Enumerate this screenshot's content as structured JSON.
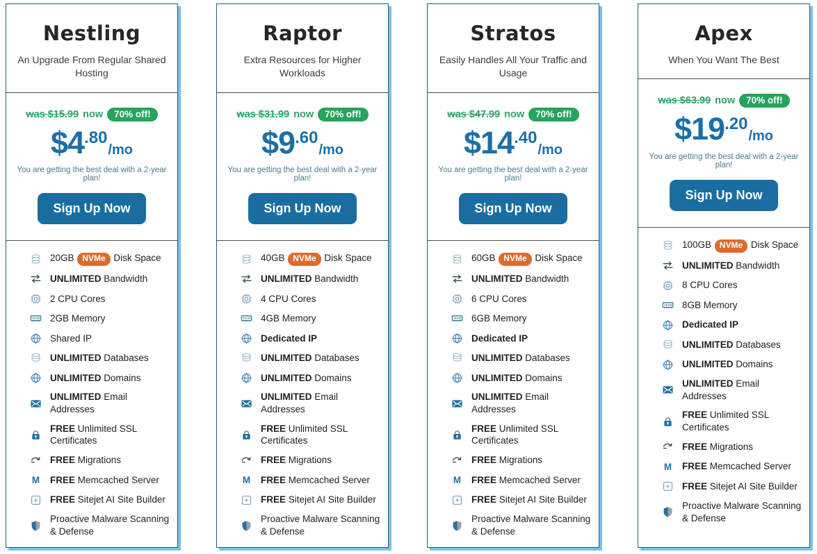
{
  "page": {
    "background": "#ffffff"
  },
  "colors": {
    "accent_blue": "#1c6fa6",
    "button_blue": "#1a6da1",
    "green": "#26a35c",
    "nvme_orange": "#dd6b2f",
    "card_border": "#1d5d6e",
    "card_shadow": "#7cc0e6"
  },
  "shared": {
    "now_label": "now",
    "discount_badge": "70% off!",
    "price_period": "/mo",
    "deal_text": "You are getting the best deal with a 2-year plan!",
    "cta_label": "Sign Up Now",
    "memcached_glyph": "M"
  },
  "plans": [
    {
      "name": "Nestling",
      "subtitle": "An Upgrade From Regular Shared Hosting",
      "was_text": "was $15.99",
      "price_main": "$4",
      "price_cents": ".80",
      "features": [
        {
          "icon": "disk-stack-icon",
          "segments": [
            {
              "t": "20GB"
            },
            {
              "t": "NVMe",
              "badge": true
            },
            {
              "t": "Disk Space"
            }
          ]
        },
        {
          "icon": "bandwidth-icon",
          "segments": [
            {
              "t": "UNLIMITED",
              "b": true
            },
            {
              "t": "Bandwidth"
            }
          ]
        },
        {
          "icon": "cpu-icon",
          "segments": [
            {
              "t": "2 CPU Cores"
            }
          ]
        },
        {
          "icon": "memory-icon",
          "segments": [
            {
              "t": "2GB Memory"
            }
          ]
        },
        {
          "icon": "globe-icon",
          "segments": [
            {
              "t": "Shared IP"
            }
          ]
        },
        {
          "icon": "database-icon",
          "segments": [
            {
              "t": "UNLIMITED",
              "b": true
            },
            {
              "t": "Databases"
            }
          ]
        },
        {
          "icon": "globe-icon",
          "segments": [
            {
              "t": "UNLIMITED",
              "b": true
            },
            {
              "t": "Domains"
            }
          ]
        },
        {
          "icon": "email-icon",
          "segments": [
            {
              "t": "UNLIMITED",
              "b": true
            },
            {
              "t": "Email Addresses"
            }
          ]
        },
        {
          "icon": "lock-icon",
          "segments": [
            {
              "t": "FREE",
              "b": true
            },
            {
              "t": "Unlimited SSL Certificates"
            }
          ]
        },
        {
          "icon": "migration-icon",
          "segments": [
            {
              "t": "FREE",
              "b": true
            },
            {
              "t": "Migrations"
            }
          ]
        },
        {
          "icon": "memcached-icon",
          "segments": [
            {
              "t": "FREE",
              "b": true
            },
            {
              "t": "Memcached Server"
            }
          ]
        },
        {
          "icon": "sitejet-icon",
          "segments": [
            {
              "t": "FREE",
              "b": true
            },
            {
              "t": "Sitejet AI Site Builder"
            }
          ]
        },
        {
          "icon": "shield-icon",
          "segments": [
            {
              "t": "Proactive Malware Scanning & Defense"
            }
          ]
        }
      ]
    },
    {
      "name": "Raptor",
      "subtitle": "Extra Resources for Higher Workloads",
      "was_text": "was $31.99",
      "price_main": "$9",
      "price_cents": ".60",
      "features": [
        {
          "icon": "disk-stack-icon",
          "segments": [
            {
              "t": "40GB"
            },
            {
              "t": "NVMe",
              "badge": true
            },
            {
              "t": "Disk Space"
            }
          ]
        },
        {
          "icon": "bandwidth-icon",
          "segments": [
            {
              "t": "UNLIMITED",
              "b": true
            },
            {
              "t": "Bandwidth"
            }
          ]
        },
        {
          "icon": "cpu-icon",
          "segments": [
            {
              "t": "4 CPU Cores"
            }
          ]
        },
        {
          "icon": "memory-icon",
          "segments": [
            {
              "t": "4GB Memory"
            }
          ]
        },
        {
          "icon": "globe-icon",
          "segments": [
            {
              "t": "Dedicated IP",
              "b": true
            }
          ]
        },
        {
          "icon": "database-icon",
          "segments": [
            {
              "t": "UNLIMITED",
              "b": true
            },
            {
              "t": "Databases"
            }
          ]
        },
        {
          "icon": "globe-icon",
          "segments": [
            {
              "t": "UNLIMITED",
              "b": true
            },
            {
              "t": "Domains"
            }
          ]
        },
        {
          "icon": "email-icon",
          "segments": [
            {
              "t": "UNLIMITED",
              "b": true
            },
            {
              "t": "Email Addresses"
            }
          ]
        },
        {
          "icon": "lock-icon",
          "segments": [
            {
              "t": "FREE",
              "b": true
            },
            {
              "t": "Unlimited SSL Certificates"
            }
          ]
        },
        {
          "icon": "migration-icon",
          "segments": [
            {
              "t": "FREE",
              "b": true
            },
            {
              "t": "Migrations"
            }
          ]
        },
        {
          "icon": "memcached-icon",
          "segments": [
            {
              "t": "FREE",
              "b": true
            },
            {
              "t": "Memcached Server"
            }
          ]
        },
        {
          "icon": "sitejet-icon",
          "segments": [
            {
              "t": "FREE",
              "b": true
            },
            {
              "t": "Sitejet AI Site Builder"
            }
          ]
        },
        {
          "icon": "shield-icon",
          "segments": [
            {
              "t": "Proactive Malware Scanning & Defense"
            }
          ]
        }
      ]
    },
    {
      "name": "Stratos",
      "subtitle": "Easily Handles All Your Traffic and Usage",
      "was_text": "was $47.99",
      "price_main": "$14",
      "price_cents": ".40",
      "features": [
        {
          "icon": "disk-stack-icon",
          "segments": [
            {
              "t": "60GB"
            },
            {
              "t": "NVMe",
              "badge": true
            },
            {
              "t": "Disk Space"
            }
          ]
        },
        {
          "icon": "bandwidth-icon",
          "segments": [
            {
              "t": "UNLIMITED",
              "b": true
            },
            {
              "t": "Bandwidth"
            }
          ]
        },
        {
          "icon": "cpu-icon",
          "segments": [
            {
              "t": "6 CPU Cores"
            }
          ]
        },
        {
          "icon": "memory-icon",
          "segments": [
            {
              "t": "6GB Memory"
            }
          ]
        },
        {
          "icon": "globe-icon",
          "segments": [
            {
              "t": "Dedicated IP",
              "b": true
            }
          ]
        },
        {
          "icon": "database-icon",
          "segments": [
            {
              "t": "UNLIMITED",
              "b": true
            },
            {
              "t": "Databases"
            }
          ]
        },
        {
          "icon": "globe-icon",
          "segments": [
            {
              "t": "UNLIMITED",
              "b": true
            },
            {
              "t": "Domains"
            }
          ]
        },
        {
          "icon": "email-icon",
          "segments": [
            {
              "t": "UNLIMITED",
              "b": true
            },
            {
              "t": "Email Addresses"
            }
          ]
        },
        {
          "icon": "lock-icon",
          "segments": [
            {
              "t": "FREE",
              "b": true
            },
            {
              "t": "Unlimited SSL Certificates"
            }
          ]
        },
        {
          "icon": "migration-icon",
          "segments": [
            {
              "t": "FREE",
              "b": true
            },
            {
              "t": "Migrations"
            }
          ]
        },
        {
          "icon": "memcached-icon",
          "segments": [
            {
              "t": "FREE",
              "b": true
            },
            {
              "t": "Memcached Server"
            }
          ]
        },
        {
          "icon": "sitejet-icon",
          "segments": [
            {
              "t": "FREE",
              "b": true
            },
            {
              "t": "Sitejet AI Site Builder"
            }
          ]
        },
        {
          "icon": "shield-icon",
          "segments": [
            {
              "t": "Proactive Malware Scanning & Defense"
            }
          ]
        }
      ]
    },
    {
      "name": "Apex",
      "subtitle": "When You Want The Best",
      "was_text": "was $63.99",
      "price_main": "$19",
      "price_cents": ".20",
      "features": [
        {
          "icon": "disk-stack-icon",
          "segments": [
            {
              "t": "100GB"
            },
            {
              "t": "NVMe",
              "badge": true
            },
            {
              "t": "Disk Space"
            }
          ]
        },
        {
          "icon": "bandwidth-icon",
          "segments": [
            {
              "t": "UNLIMITED",
              "b": true
            },
            {
              "t": "Bandwidth"
            }
          ]
        },
        {
          "icon": "cpu-icon",
          "segments": [
            {
              "t": "8 CPU Cores"
            }
          ]
        },
        {
          "icon": "memory-icon",
          "segments": [
            {
              "t": "8GB Memory"
            }
          ]
        },
        {
          "icon": "globe-icon",
          "segments": [
            {
              "t": "Dedicated IP",
              "b": true
            }
          ]
        },
        {
          "icon": "database-icon",
          "segments": [
            {
              "t": "UNLIMITED",
              "b": true
            },
            {
              "t": "Databases"
            }
          ]
        },
        {
          "icon": "globe-icon",
          "segments": [
            {
              "t": "UNLIMITED",
              "b": true
            },
            {
              "t": "Domains"
            }
          ]
        },
        {
          "icon": "email-icon",
          "segments": [
            {
              "t": "UNLIMITED",
              "b": true
            },
            {
              "t": "Email Addresses"
            }
          ]
        },
        {
          "icon": "lock-icon",
          "segments": [
            {
              "t": "FREE",
              "b": true
            },
            {
              "t": "Unlimited SSL Certificates"
            }
          ]
        },
        {
          "icon": "migration-icon",
          "segments": [
            {
              "t": "FREE",
              "b": true
            },
            {
              "t": "Migrations"
            }
          ]
        },
        {
          "icon": "memcached-icon",
          "segments": [
            {
              "t": "FREE",
              "b": true
            },
            {
              "t": "Memcached Server"
            }
          ]
        },
        {
          "icon": "sitejet-icon",
          "segments": [
            {
              "t": "FREE",
              "b": true
            },
            {
              "t": "Sitejet AI Site Builder"
            }
          ]
        },
        {
          "icon": "shield-icon",
          "segments": [
            {
              "t": "Proactive Malware Scanning & Defense"
            }
          ]
        }
      ]
    }
  ]
}
